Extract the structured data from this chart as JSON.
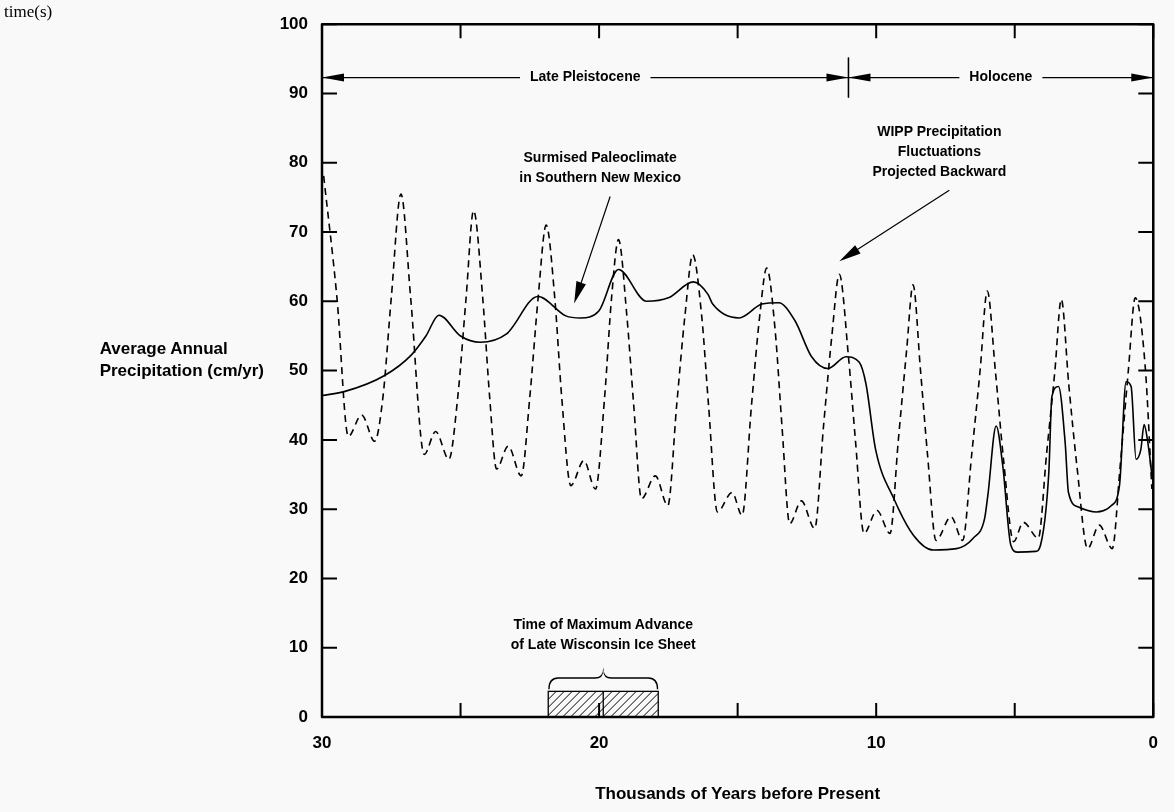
{
  "chart_data": {
    "type": "line",
    "xlabel": "Thousands of Years before Present",
    "ylabel": "Average Annual\nPrecipitation (cm/yr)",
    "xlim": [
      30,
      0
    ],
    "ylim": [
      0,
      100
    ],
    "xticks": [
      30,
      {
        "value": 25,
        "label": null
      },
      20,
      {
        "value": 15,
        "label": null
      },
      10,
      {
        "value": 5,
        "label": null
      },
      0
    ],
    "yticks": [
      0,
      10,
      20,
      30,
      40,
      50,
      60,
      70,
      80,
      90,
      100
    ],
    "grid": false,
    "legend": false,
    "marker": "none",
    "series": [
      {
        "color": "#000000",
        "line_style": "solid",
        "x": [
          30,
          29.17,
          27.74,
          26.79,
          26.25,
          25.78,
          25.0,
          24.29,
          23.34,
          22.21,
          21.2,
          20.67,
          20.01,
          19.3,
          18.29,
          17.5,
          16.6,
          16.07,
          15.9,
          14.95,
          14.12,
          13.52,
          12.93,
          12.33,
          11.74,
          11.09,
          10.61,
          10.37,
          10.02,
          9.36,
          8.65,
          7.94,
          7.1,
          6.5,
          6.09,
          5.97,
          5.67,
          5.43,
          5.14,
          4.9,
          4.25,
          4.07,
          3.77,
          3.66,
          3.42,
          3.18,
          3.06,
          2.7,
          2.05,
          1.52,
          1.22,
          0.98,
          0.8,
          0.62,
          0.45,
          0.33,
          0.21,
          0.03
        ],
        "values": [
          46.4,
          47.0,
          49.3,
          52.2,
          55.0,
          58.0,
          55.0,
          54.1,
          55.3,
          60.7,
          57.9,
          57.6,
          58.6,
          64.6,
          60.0,
          60.5,
          62.8,
          61.0,
          59.6,
          57.6,
          59.6,
          59.8,
          57.2,
          52.0,
          50.3,
          52.0,
          51.2,
          48.1,
          38.6,
          31.5,
          26.2,
          24.1,
          24.3,
          25.8,
          28.6,
          32.0,
          42.0,
          36.2,
          24.8,
          23.8,
          23.9,
          24.8,
          35.3,
          46.2,
          47.7,
          39.6,
          32.4,
          30.3,
          29.6,
          30.5,
          33.4,
          48.4,
          47.7,
          37.2,
          38.6,
          42.2,
          40.0,
          34.3
        ]
      },
      {
        "color": "#000000",
        "line_style": "dashed",
        "x": [
          29.94,
          29.46,
          29.05,
          28.57,
          28.1,
          27.8,
          27.5,
          27.15,
          26.8,
          26.31,
          25.9,
          25.42,
          25.1,
          24.8,
          24.53,
          24.2,
          23.95,
          23.7,
          23.28,
          22.81,
          22.5,
          22.2,
          21.91,
          21.6,
          21.35,
          21.02,
          20.55,
          20.13,
          19.8,
          19.55,
          19.3,
          19.0,
          18.75,
          18.47,
          17.97,
          17.52,
          17.2,
          16.9,
          16.62,
          16.3,
          16.05,
          15.73,
          15.2,
          14.84,
          14.5,
          14.2,
          13.95,
          13.65,
          13.4,
          13.12,
          12.7,
          12.22,
          11.9,
          11.6,
          11.33,
          11.0,
          10.75,
          10.44,
          9.97,
          9.5,
          9.2,
          8.9,
          8.67,
          8.4,
          8.15,
          7.84,
          7.3,
          6.88,
          6.55,
          6.25,
          5.99,
          5.7,
          5.4,
          5.04,
          4.69,
          4.15,
          3.85,
          3.55,
          3.32,
          3.05,
          2.75,
          2.37,
          1.95,
          1.48,
          1.2,
          0.9,
          0.65,
          0.29,
          0.05
        ],
        "values": [
          78.1,
          60.5,
          40.5,
          43.6,
          39.8,
          46.2,
          60.5,
          75.5,
          60.5,
          37.9,
          41.2,
          37.2,
          46.2,
          60.5,
          73.1,
          60.5,
          46.2,
          35.8,
          39.1,
          34.8,
          46.2,
          60.5,
          71.0,
          60.5,
          46.2,
          33.4,
          37.0,
          32.9,
          46.2,
          60.5,
          68.9,
          58.0,
          45.0,
          31.5,
          34.8,
          30.5,
          45.0,
          58.0,
          66.7,
          58.0,
          45.0,
          29.6,
          32.4,
          29.1,
          45.0,
          58.0,
          64.8,
          56.0,
          42.0,
          27.9,
          31.2,
          27.2,
          42.0,
          55.0,
          63.9,
          52.0,
          40.0,
          26.5,
          29.8,
          26.5,
          40.0,
          53.0,
          62.4,
          50.0,
          38.0,
          25.5,
          28.9,
          25.5,
          38.0,
          50.0,
          61.5,
          50.0,
          37.0,
          25.3,
          28.1,
          25.8,
          38.0,
          50.0,
          60.3,
          48.0,
          36.0,
          24.3,
          27.7,
          24.3,
          36.0,
          50.0,
          60.5,
          50.5,
          32.9
        ]
      }
    ],
    "annotations": [
      "time(s)",
      "Late Pleistocene",
      "Holocene",
      "Time of Maximum Advance\nof Late Wisconsin Ice Sheet",
      "Surmised Paleoclimate\nin Southern New Mexico",
      "WIPP Precipitation\nFluctuations\nProjected Backward"
    ]
  }
}
